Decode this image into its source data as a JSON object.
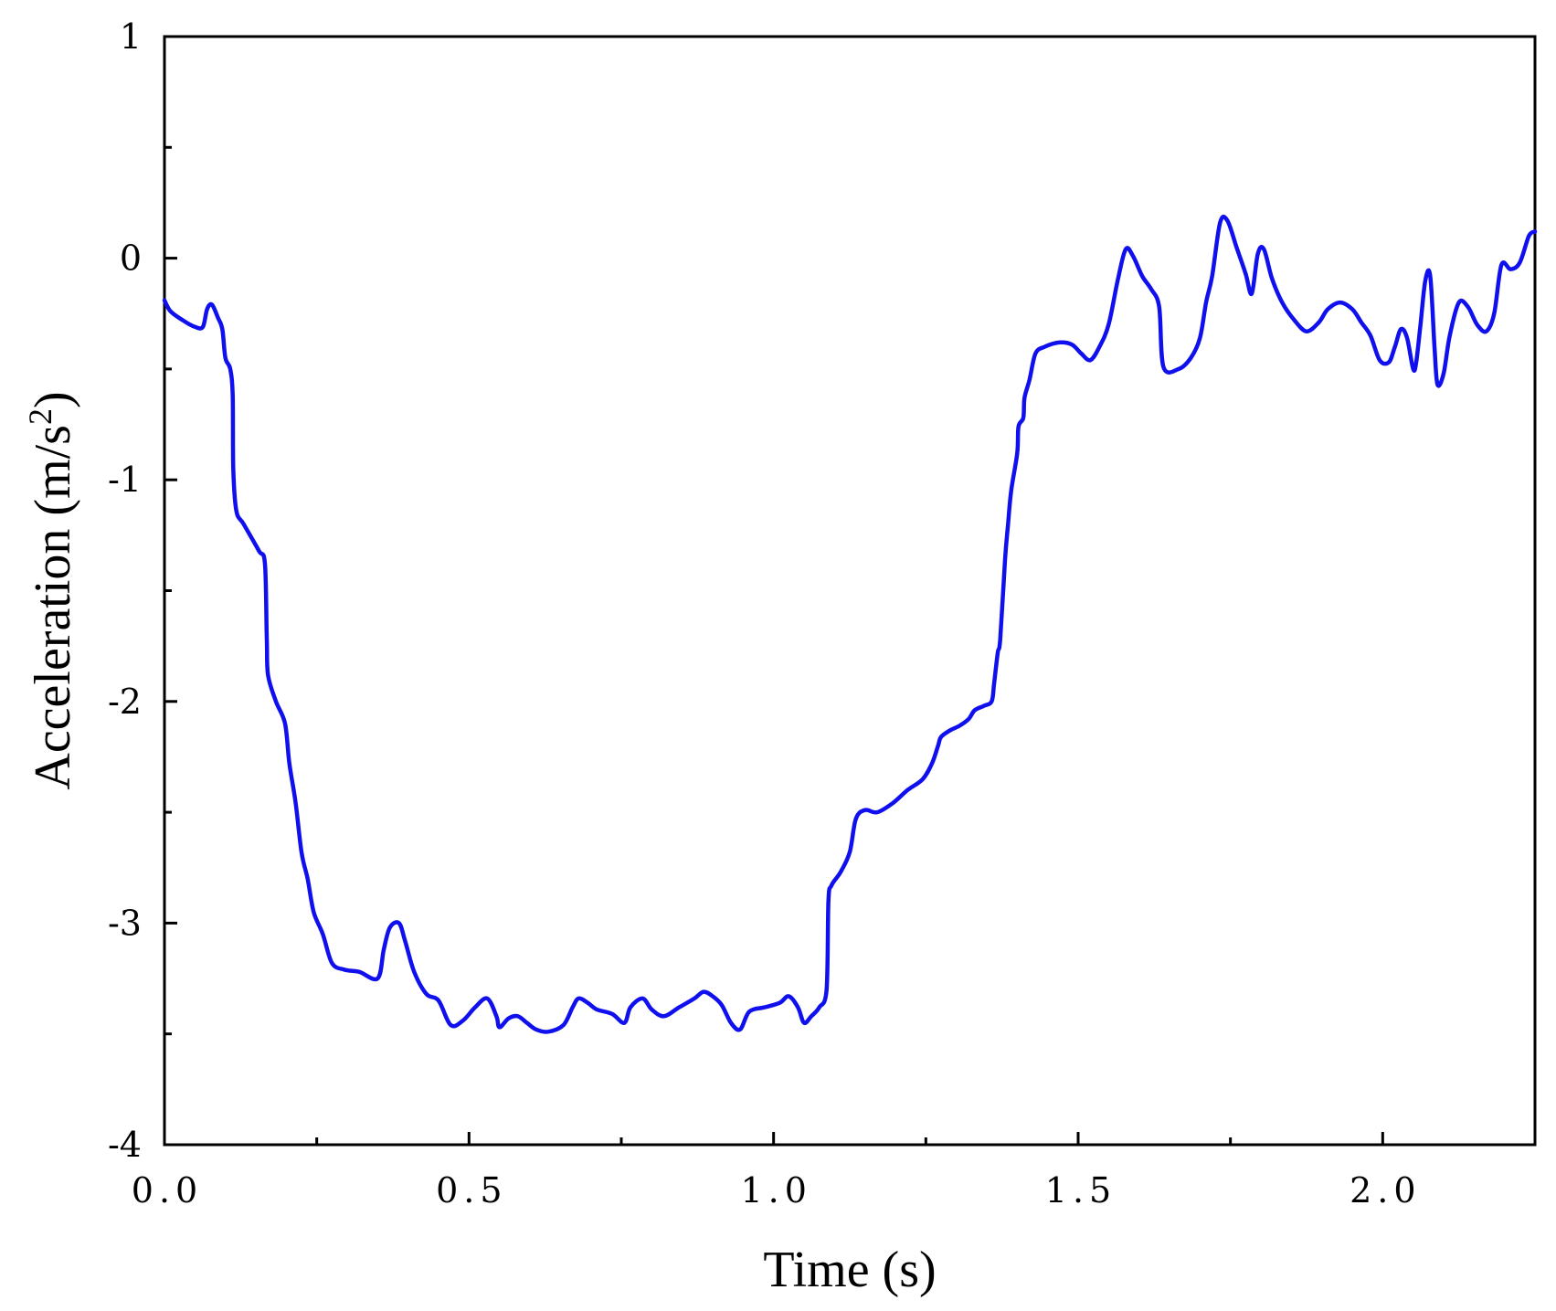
{
  "chart_data": {
    "type": "line",
    "xlabel": "Time (s)",
    "ylabel_main": "Acceleration (m/s",
    "ylabel_sup": "2",
    "ylabel_close": ")",
    "xlim": [
      0,
      2.25
    ],
    "ylim": [
      -4,
      1
    ],
    "x_ticks": [
      {
        "value": 0.0,
        "label": "0.0"
      },
      {
        "value": 0.5,
        "label": "0.5"
      },
      {
        "value": 1.0,
        "label": "1.0"
      },
      {
        "value": 1.5,
        "label": "1.5"
      },
      {
        "value": 2.0,
        "label": "2.0"
      }
    ],
    "x_minor_ticks": [
      0.25,
      0.75,
      1.25,
      1.75
    ],
    "y_ticks": [
      {
        "value": 1,
        "label": "1"
      },
      {
        "value": 0,
        "label": "0"
      },
      {
        "value": -1,
        "label": "-1"
      },
      {
        "value": -2,
        "label": "-2"
      },
      {
        "value": -3,
        "label": "-3"
      },
      {
        "value": -4,
        "label": "-4"
      }
    ],
    "y_minor_ticks": [
      0.5,
      -0.5,
      -1.5,
      -2.5,
      -3.5
    ],
    "grid": false,
    "line_color": "#1010ee",
    "series": [
      {
        "points": [
          [
            0.0,
            -0.19
          ],
          [
            0.01,
            -0.24
          ],
          [
            0.03,
            -0.28
          ],
          [
            0.05,
            -0.31
          ],
          [
            0.063,
            -0.31
          ],
          [
            0.07,
            -0.23
          ],
          [
            0.078,
            -0.21
          ],
          [
            0.088,
            -0.27
          ],
          [
            0.095,
            -0.32
          ],
          [
            0.1,
            -0.45
          ],
          [
            0.108,
            -0.5
          ],
          [
            0.112,
            -0.62
          ],
          [
            0.113,
            -0.95
          ],
          [
            0.118,
            -1.14
          ],
          [
            0.13,
            -1.2
          ],
          [
            0.155,
            -1.32
          ],
          [
            0.165,
            -1.38
          ],
          [
            0.168,
            -1.72
          ],
          [
            0.17,
            -1.88
          ],
          [
            0.183,
            -2.0
          ],
          [
            0.198,
            -2.1
          ],
          [
            0.205,
            -2.28
          ],
          [
            0.215,
            -2.45
          ],
          [
            0.225,
            -2.68
          ],
          [
            0.235,
            -2.8
          ],
          [
            0.245,
            -2.95
          ],
          [
            0.26,
            -3.05
          ],
          [
            0.275,
            -3.18
          ],
          [
            0.295,
            -3.21
          ],
          [
            0.32,
            -3.22
          ],
          [
            0.35,
            -3.25
          ],
          [
            0.36,
            -3.12
          ],
          [
            0.37,
            -3.02
          ],
          [
            0.385,
            -3.0
          ],
          [
            0.395,
            -3.08
          ],
          [
            0.41,
            -3.22
          ],
          [
            0.43,
            -3.32
          ],
          [
            0.45,
            -3.35
          ],
          [
            0.47,
            -3.46
          ],
          [
            0.49,
            -3.44
          ],
          [
            0.51,
            -3.38
          ],
          [
            0.53,
            -3.34
          ],
          [
            0.545,
            -3.42
          ],
          [
            0.55,
            -3.47
          ],
          [
            0.565,
            -3.43
          ],
          [
            0.58,
            -3.42
          ],
          [
            0.595,
            -3.45
          ],
          [
            0.61,
            -3.48
          ],
          [
            0.63,
            -3.49
          ],
          [
            0.655,
            -3.46
          ],
          [
            0.67,
            -3.38
          ],
          [
            0.68,
            -3.34
          ],
          [
            0.695,
            -3.36
          ],
          [
            0.71,
            -3.39
          ],
          [
            0.735,
            -3.41
          ],
          [
            0.755,
            -3.45
          ],
          [
            0.765,
            -3.38
          ],
          [
            0.785,
            -3.34
          ],
          [
            0.8,
            -3.39
          ],
          [
            0.82,
            -3.42
          ],
          [
            0.845,
            -3.38
          ],
          [
            0.87,
            -3.34
          ],
          [
            0.885,
            -3.31
          ],
          [
            0.9,
            -3.33
          ],
          [
            0.915,
            -3.37
          ],
          [
            0.93,
            -3.45
          ],
          [
            0.945,
            -3.48
          ],
          [
            0.96,
            -3.4
          ],
          [
            0.985,
            -3.38
          ],
          [
            1.01,
            -3.36
          ],
          [
            1.025,
            -3.33
          ],
          [
            1.04,
            -3.38
          ],
          [
            1.05,
            -3.45
          ],
          [
            1.062,
            -3.42
          ],
          [
            1.075,
            -3.38
          ],
          [
            1.087,
            -3.3
          ],
          [
            1.09,
            -2.9
          ],
          [
            1.095,
            -2.83
          ],
          [
            1.11,
            -2.77
          ],
          [
            1.125,
            -2.68
          ],
          [
            1.135,
            -2.53
          ],
          [
            1.15,
            -2.49
          ],
          [
            1.17,
            -2.5
          ],
          [
            1.195,
            -2.46
          ],
          [
            1.22,
            -2.4
          ],
          [
            1.245,
            -2.35
          ],
          [
            1.26,
            -2.28
          ],
          [
            1.27,
            -2.2
          ],
          [
            1.275,
            -2.16
          ],
          [
            1.29,
            -2.13
          ],
          [
            1.305,
            -2.11
          ],
          [
            1.32,
            -2.08
          ],
          [
            1.33,
            -2.04
          ],
          [
            1.345,
            -2.02
          ],
          [
            1.358,
            -2.0
          ],
          [
            1.362,
            -1.92
          ],
          [
            1.368,
            -1.78
          ],
          [
            1.372,
            -1.72
          ],
          [
            1.38,
            -1.36
          ],
          [
            1.385,
            -1.2
          ],
          [
            1.39,
            -1.05
          ],
          [
            1.4,
            -0.88
          ],
          [
            1.402,
            -0.76
          ],
          [
            1.41,
            -0.72
          ],
          [
            1.412,
            -0.63
          ],
          [
            1.42,
            -0.55
          ],
          [
            1.43,
            -0.43
          ],
          [
            1.445,
            -0.4
          ],
          [
            1.47,
            -0.38
          ],
          [
            1.49,
            -0.39
          ],
          [
            1.505,
            -0.43
          ],
          [
            1.52,
            -0.46
          ],
          [
            1.535,
            -0.4
          ],
          [
            1.55,
            -0.3
          ],
          [
            1.565,
            -0.1
          ],
          [
            1.578,
            0.04
          ],
          [
            1.59,
            0.01
          ],
          [
            1.605,
            -0.08
          ],
          [
            1.62,
            -0.14
          ],
          [
            1.633,
            -0.22
          ],
          [
            1.64,
            -0.49
          ],
          [
            1.665,
            -0.5
          ],
          [
            1.685,
            -0.45
          ],
          [
            1.7,
            -0.36
          ],
          [
            1.71,
            -0.2
          ],
          [
            1.72,
            -0.08
          ],
          [
            1.733,
            0.16
          ],
          [
            1.745,
            0.17
          ],
          [
            1.76,
            0.05
          ],
          [
            1.775,
            -0.07
          ],
          [
            1.785,
            -0.16
          ],
          [
            1.795,
            0.02
          ],
          [
            1.805,
            0.04
          ],
          [
            1.818,
            -0.09
          ],
          [
            1.835,
            -0.2
          ],
          [
            1.855,
            -0.28
          ],
          [
            1.875,
            -0.33
          ],
          [
            1.895,
            -0.29
          ],
          [
            1.91,
            -0.23
          ],
          [
            1.93,
            -0.2
          ],
          [
            1.95,
            -0.23
          ],
          [
            1.965,
            -0.29
          ],
          [
            1.98,
            -0.35
          ],
          [
            1.995,
            -0.46
          ],
          [
            2.01,
            -0.47
          ],
          [
            2.02,
            -0.4
          ],
          [
            2.03,
            -0.32
          ],
          [
            2.04,
            -0.36
          ],
          [
            2.05,
            -0.5
          ],
          [
            2.055,
            -0.47
          ],
          [
            2.062,
            -0.3
          ],
          [
            2.07,
            -0.1
          ],
          [
            2.078,
            -0.08
          ],
          [
            2.085,
            -0.4
          ],
          [
            2.09,
            -0.57
          ],
          [
            2.1,
            -0.52
          ],
          [
            2.11,
            -0.35
          ],
          [
            2.125,
            -0.2
          ],
          [
            2.14,
            -0.22
          ],
          [
            2.155,
            -0.3
          ],
          [
            2.17,
            -0.33
          ],
          [
            2.183,
            -0.25
          ],
          [
            2.195,
            -0.03
          ],
          [
            2.21,
            -0.05
          ],
          [
            2.225,
            -0.02
          ],
          [
            2.24,
            0.1
          ],
          [
            2.25,
            0.12
          ]
        ]
      }
    ]
  }
}
